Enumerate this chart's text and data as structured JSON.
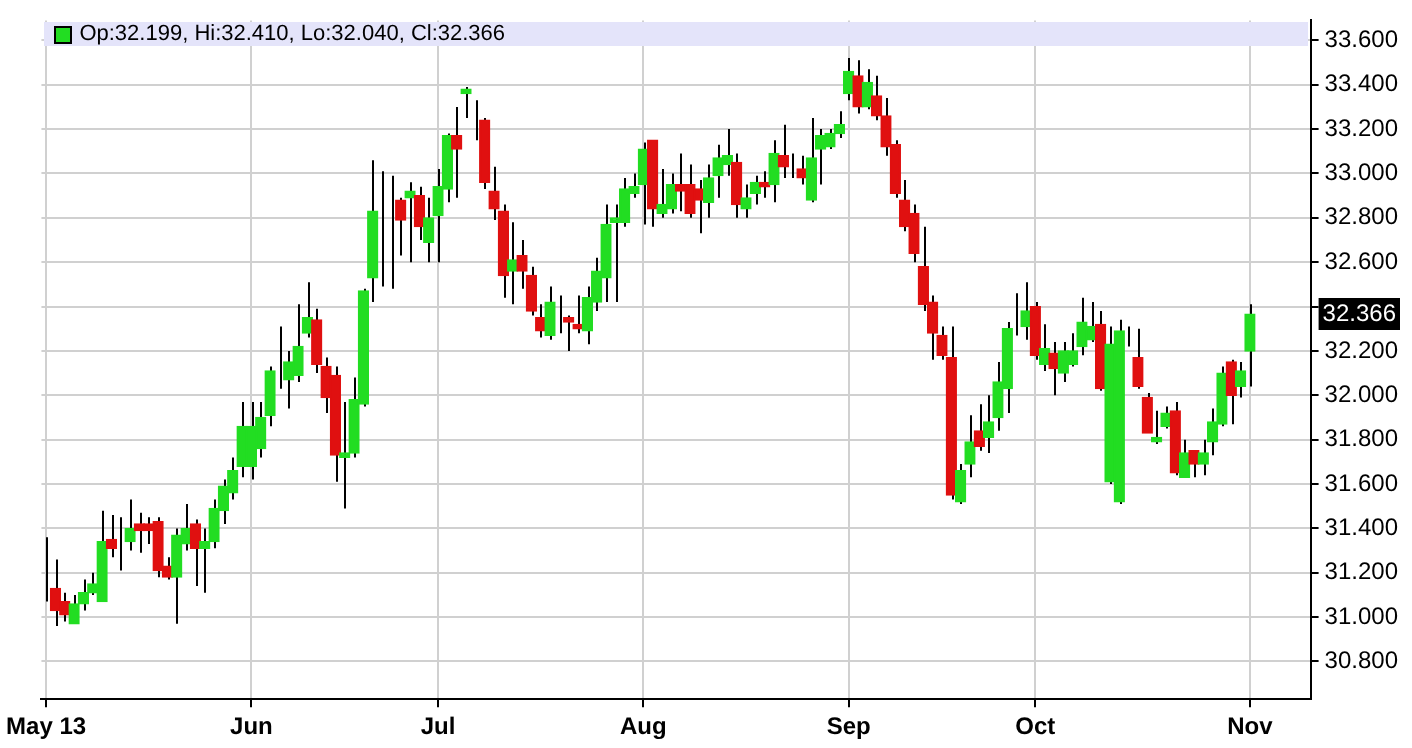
{
  "chart_data": {
    "type": "candlestick",
    "title": "Op:32.199, Hi:32.410, Lo:32.040, Cl:32.366",
    "categories": [
      "May 13",
      null,
      null,
      null,
      null,
      null,
      null,
      null,
      null,
      null,
      null,
      null,
      null,
      null,
      null,
      null,
      null,
      null,
      null,
      null,
      null,
      null,
      "Jun",
      null,
      null,
      null,
      null,
      null,
      null,
      null,
      null,
      null,
      null,
      null,
      null,
      null,
      null,
      null,
      null,
      null,
      null,
      null,
      "Jul",
      null,
      null,
      null,
      null,
      null,
      null,
      null,
      null,
      null,
      null,
      null,
      null,
      null,
      null,
      null,
      null,
      null,
      null,
      null,
      null,
      null,
      "Aug",
      null,
      null,
      null,
      null,
      null,
      null,
      null,
      null,
      null,
      null,
      null,
      null,
      null,
      null,
      null,
      null,
      null,
      null,
      null,
      null,
      null,
      "Sep",
      null,
      null,
      null,
      null,
      null,
      null,
      null,
      null,
      null,
      null,
      null,
      null,
      null,
      null,
      null,
      null,
      null,
      null,
      null,
      "Oct",
      null,
      null,
      null,
      null,
      null,
      null,
      null,
      null,
      null,
      null,
      null,
      null,
      null,
      null,
      null,
      null,
      null,
      null,
      null,
      null,
      null,
      null,
      "Nov",
      null,
      null,
      null,
      null,
      null,
      null
    ],
    "ohlc": [
      [
        31.11,
        31.36,
        31.07,
        31.11
      ],
      [
        31.13,
        31.26,
        30.96,
        31.03
      ],
      [
        31.07,
        31.11,
        30.98,
        31.01
      ],
      [
        30.97,
        31.1,
        30.97,
        31.06
      ],
      [
        31.06,
        31.17,
        31.03,
        31.11
      ],
      [
        31.11,
        31.2,
        31.1,
        31.15
      ],
      [
        31.07,
        31.48,
        31.07,
        31.34
      ],
      [
        31.35,
        31.46,
        31.27,
        31.31
      ],
      [
        31.38,
        31.45,
        31.21,
        31.38
      ],
      [
        31.34,
        31.53,
        31.3,
        31.4
      ],
      [
        31.42,
        31.47,
        31.29,
        31.39
      ],
      [
        31.42,
        31.45,
        31.33,
        31.39
      ],
      [
        31.43,
        31.45,
        31.18,
        31.21
      ],
      [
        31.23,
        31.27,
        31.17,
        31.18
      ],
      [
        31.18,
        31.4,
        30.97,
        31.37
      ],
      [
        31.33,
        31.51,
        31.3,
        31.4
      ],
      [
        31.42,
        31.44,
        31.14,
        31.31
      ],
      [
        31.31,
        31.4,
        31.11,
        31.34
      ],
      [
        31.34,
        31.53,
        31.31,
        31.49
      ],
      [
        31.48,
        31.62,
        31.42,
        31.59
      ],
      [
        31.56,
        31.72,
        31.53,
        31.66
      ],
      [
        31.68,
        31.97,
        31.63,
        31.86
      ],
      [
        31.68,
        31.97,
        31.62,
        31.86
      ],
      [
        31.76,
        31.97,
        31.72,
        31.9
      ],
      [
        31.91,
        32.13,
        31.86,
        32.11
      ],
      [
        32.09,
        32.31,
        32.03,
        32.09
      ],
      [
        32.07,
        32.2,
        31.94,
        32.15
      ],
      [
        32.09,
        32.41,
        32.06,
        32.22
      ],
      [
        32.28,
        32.51,
        32.26,
        32.35
      ],
      [
        32.34,
        32.39,
        32.1,
        32.14
      ],
      [
        32.13,
        32.17,
        31.92,
        31.99
      ],
      [
        32.09,
        32.13,
        31.61,
        31.73
      ],
      [
        31.72,
        31.97,
        31.49,
        31.74
      ],
      [
        31.74,
        32.08,
        31.72,
        31.98
      ],
      [
        31.96,
        32.48,
        31.95,
        32.47
      ],
      [
        32.53,
        33.06,
        32.42,
        32.83
      ],
      [
        32.76,
        33.01,
        32.49,
        32.76
      ],
      [
        32.76,
        32.99,
        32.48,
        32.76
      ],
      [
        32.88,
        32.89,
        32.63,
        32.79
      ],
      [
        32.89,
        32.96,
        32.6,
        32.92
      ],
      [
        32.9,
        32.94,
        32.7,
        32.76
      ],
      [
        32.69,
        32.89,
        32.6,
        32.8
      ],
      [
        32.81,
        33.02,
        32.6,
        32.94
      ],
      [
        32.93,
        33.18,
        32.87,
        33.17
      ],
      [
        33.17,
        33.3,
        32.89,
        33.11
      ],
      [
        33.36,
        33.39,
        33.25,
        33.38
      ],
      [
        33.19,
        33.33,
        33.15,
        33.19
      ],
      [
        33.24,
        33.25,
        32.93,
        32.96
      ],
      [
        32.92,
        33.03,
        32.79,
        32.84
      ],
      [
        32.83,
        32.86,
        32.44,
        32.54
      ],
      [
        32.56,
        32.78,
        32.41,
        32.61
      ],
      [
        32.63,
        32.7,
        32.48,
        32.56
      ],
      [
        32.54,
        32.58,
        32.36,
        32.38
      ],
      [
        32.35,
        32.41,
        32.26,
        32.29
      ],
      [
        32.27,
        32.49,
        32.25,
        32.42
      ],
      [
        32.34,
        32.45,
        32.28,
        32.34
      ],
      [
        32.35,
        32.36,
        32.2,
        32.33
      ],
      [
        32.32,
        32.45,
        32.28,
        32.3
      ],
      [
        32.29,
        32.49,
        32.23,
        32.44
      ],
      [
        32.42,
        32.62,
        32.38,
        32.56
      ],
      [
        32.53,
        32.86,
        32.42,
        32.77
      ],
      [
        32.78,
        32.86,
        32.42,
        32.8
      ],
      [
        32.78,
        32.98,
        32.76,
        32.93
      ],
      [
        32.91,
        33.0,
        32.89,
        32.94
      ],
      [
        32.95,
        33.14,
        32.77,
        33.11
      ],
      [
        33.15,
        33.15,
        32.76,
        32.84
      ],
      [
        32.82,
        33.02,
        32.8,
        32.86
      ],
      [
        32.84,
        33.0,
        32.82,
        32.95
      ],
      [
        32.95,
        33.09,
        32.83,
        32.92
      ],
      [
        32.95,
        33.04,
        32.8,
        32.82
      ],
      [
        32.93,
        32.97,
        32.73,
        32.88
      ],
      [
        32.87,
        33.04,
        32.8,
        32.98
      ],
      [
        32.99,
        33.13,
        32.89,
        33.07
      ],
      [
        33.04,
        33.2,
        32.99,
        33.08
      ],
      [
        33.05,
        33.09,
        32.8,
        32.86
      ],
      [
        32.84,
        32.95,
        32.8,
        32.89
      ],
      [
        32.91,
        32.99,
        32.86,
        32.96
      ],
      [
        32.96,
        33.01,
        32.89,
        32.94
      ],
      [
        32.95,
        33.15,
        32.87,
        33.09
      ],
      [
        33.08,
        33.22,
        32.98,
        33.03
      ],
      [
        33.03,
        33.09,
        32.98,
        33.03
      ],
      [
        33.02,
        33.08,
        32.95,
        32.98
      ],
      [
        32.88,
        33.25,
        32.87,
        33.07
      ],
      [
        33.11,
        33.2,
        32.95,
        33.17
      ],
      [
        33.12,
        33.2,
        33.11,
        33.18
      ],
      [
        33.18,
        33.28,
        33.16,
        33.22
      ],
      [
        33.36,
        33.52,
        33.33,
        33.46
      ],
      [
        33.44,
        33.51,
        33.27,
        33.3
      ],
      [
        33.3,
        33.47,
        33.29,
        33.41
      ],
      [
        33.35,
        33.44,
        33.24,
        33.26
      ],
      [
        33.26,
        33.34,
        33.08,
        33.12
      ],
      [
        33.13,
        33.15,
        32.89,
        32.91
      ],
      [
        32.88,
        32.97,
        32.74,
        32.76
      ],
      [
        32.82,
        32.86,
        32.6,
        32.64
      ],
      [
        32.58,
        32.76,
        32.38,
        32.41
      ],
      [
        32.42,
        32.45,
        32.16,
        32.28
      ],
      [
        32.27,
        32.31,
        32.16,
        32.18
      ],
      [
        32.17,
        32.31,
        31.53,
        31.55
      ],
      [
        31.52,
        31.69,
        31.51,
        31.66
      ],
      [
        31.69,
        31.91,
        31.63,
        31.79
      ],
      [
        31.84,
        31.96,
        31.75,
        31.77
      ],
      [
        31.81,
        32.0,
        31.74,
        31.88
      ],
      [
        31.9,
        32.15,
        31.84,
        32.06
      ],
      [
        32.03,
        32.33,
        31.92,
        32.3
      ],
      [
        32.32,
        32.46,
        32.27,
        32.32
      ],
      [
        32.31,
        32.51,
        32.25,
        32.38
      ],
      [
        32.4,
        32.42,
        32.16,
        32.18
      ],
      [
        32.14,
        32.32,
        32.11,
        32.21
      ],
      [
        32.19,
        32.24,
        32.0,
        32.12
      ],
      [
        32.1,
        32.24,
        32.06,
        32.2
      ],
      [
        32.14,
        32.28,
        32.13,
        32.2
      ],
      [
        32.22,
        32.44,
        32.18,
        32.33
      ],
      [
        32.25,
        32.42,
        32.24,
        32.31
      ],
      [
        32.32,
        32.38,
        32.02,
        32.03
      ],
      [
        31.61,
        32.31,
        31.6,
        32.23
      ],
      [
        31.52,
        32.34,
        31.51,
        32.29
      ],
      [
        32.25,
        32.31,
        32.22,
        32.25
      ],
      [
        32.17,
        32.3,
        32.03,
        32.04
      ],
      [
        31.99,
        32.01,
        31.83,
        31.83
      ],
      [
        31.79,
        31.93,
        31.78,
        31.81
      ],
      [
        31.86,
        31.95,
        31.85,
        31.92
      ],
      [
        31.93,
        31.97,
        31.64,
        31.65
      ],
      [
        31.63,
        31.8,
        31.63,
        31.74
      ],
      [
        31.75,
        31.75,
        31.63,
        31.69
      ],
      [
        31.69,
        31.8,
        31.64,
        31.74
      ],
      [
        31.79,
        31.94,
        31.73,
        31.88
      ],
      [
        31.87,
        32.13,
        31.86,
        32.1
      ],
      [
        32.15,
        32.16,
        31.87,
        32.0
      ],
      [
        32.04,
        32.15,
        31.99,
        32.11
      ],
      [
        32.199,
        32.41,
        32.04,
        32.366
      ],
      null,
      null,
      null,
      null,
      null,
      null
    ],
    "colors": [
      "#22dd22",
      "#e01010",
      "#e01010",
      "#22dd22",
      "#22dd22",
      "#22dd22",
      "#22dd22",
      "#e01010",
      "#22dd22",
      "#22dd22",
      "#e01010",
      "#e01010",
      "#e01010",
      "#e01010",
      "#22dd22",
      "#22dd22",
      "#e01010",
      "#22dd22",
      "#22dd22",
      "#22dd22",
      "#22dd22",
      "#22dd22",
      "#22dd22",
      "#22dd22",
      "#22dd22",
      "#22dd22",
      "#22dd22",
      "#22dd22",
      "#22dd22",
      "#e01010",
      "#e01010",
      "#e01010",
      "#22dd22",
      "#22dd22",
      "#22dd22",
      "#22dd22",
      "#22dd22",
      "#22dd22",
      "#e01010",
      "#22dd22",
      "#e01010",
      "#22dd22",
      "#22dd22",
      "#22dd22",
      "#e01010",
      "#22dd22",
      "#22dd22",
      "#e01010",
      "#e01010",
      "#e01010",
      "#22dd22",
      "#e01010",
      "#e01010",
      "#e01010",
      "#22dd22",
      "#22dd22",
      "#e01010",
      "#e01010",
      "#22dd22",
      "#22dd22",
      "#22dd22",
      "#22dd22",
      "#22dd22",
      "#22dd22",
      "#22dd22",
      "#e01010",
      "#22dd22",
      "#22dd22",
      "#e01010",
      "#e01010",
      "#e01010",
      "#22dd22",
      "#22dd22",
      "#22dd22",
      "#e01010",
      "#22dd22",
      "#22dd22",
      "#e01010",
      "#22dd22",
      "#e01010",
      "#22dd22",
      "#e01010",
      "#22dd22",
      "#22dd22",
      "#22dd22",
      "#22dd22",
      "#22dd22",
      "#e01010",
      "#22dd22",
      "#e01010",
      "#e01010",
      "#e01010",
      "#e01010",
      "#e01010",
      "#e01010",
      "#e01010",
      "#e01010",
      "#e01010",
      "#22dd22",
      "#22dd22",
      "#e01010",
      "#22dd22",
      "#22dd22",
      "#22dd22",
      "#22dd22",
      "#22dd22",
      "#e01010",
      "#22dd22",
      "#e01010",
      "#22dd22",
      "#22dd22",
      "#22dd22",
      "#22dd22",
      "#e01010",
      "#22dd22",
      "#22dd22",
      "#22dd22",
      "#e01010",
      "#e01010",
      "#22dd22",
      "#22dd22",
      "#e01010",
      "#22dd22",
      "#e01010",
      "#22dd22",
      "#22dd22",
      "#22dd22",
      "#e01010",
      "#22dd22",
      "#22dd22",
      null,
      null,
      null,
      null,
      null,
      null
    ],
    "ylim": [
      30.63,
      33.69
    ],
    "yticks": [
      {
        "value": 30.8,
        "label": "30.800"
      },
      {
        "value": 31.0,
        "label": "31.000"
      },
      {
        "value": 31.2,
        "label": "31.200"
      },
      {
        "value": 31.4,
        "label": "31.400"
      },
      {
        "value": 31.6,
        "label": "31.600"
      },
      {
        "value": 31.8,
        "label": "31.800"
      },
      {
        "value": 32.0,
        "label": "32.000"
      },
      {
        "value": 32.2,
        "label": "32.200"
      },
      {
        "value": 32.4,
        "label": null
      },
      {
        "value": 32.6,
        "label": "32.600"
      },
      {
        "value": 32.8,
        "label": "32.800"
      },
      {
        "value": 33.0,
        "label": "33.000"
      },
      {
        "value": 33.2,
        "label": "33.200"
      },
      {
        "value": 33.4,
        "label": "33.400"
      },
      {
        "value": 33.6,
        "label": "33.600"
      }
    ],
    "annotations": [
      "32.366"
    ],
    "grid": true,
    "legend": false
  }
}
